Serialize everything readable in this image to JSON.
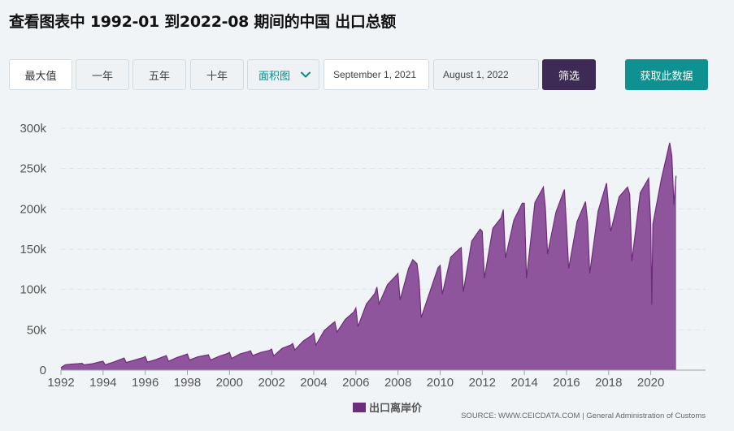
{
  "title": "查看图表中 1992-01 到2022-08 期间的中国 出口总额",
  "toolbar": {
    "ranges": [
      "最大值",
      "一年",
      "五年",
      "十年"
    ],
    "chart_type": "面积图",
    "start_date": "September 1, 2021",
    "end_date": "August 1, 2022",
    "filter_label": "筛选",
    "get_data_label": "获取此数据"
  },
  "colors": {
    "area_fill": "#8e559c",
    "area_stroke": "#6e2d7c",
    "filter_button": "#3d2b56",
    "get_data_button": "#0e9190"
  },
  "chart_data": {
    "type": "area",
    "xlabel": "",
    "ylabel": "",
    "xlim": [
      1992,
      2022.6
    ],
    "ylim": [
      0,
      300000
    ],
    "grid": true,
    "legend_position": "bottom-center",
    "x_ticks": [
      1992,
      1994,
      1996,
      1998,
      2000,
      2002,
      2004,
      2006,
      2008,
      2010,
      2012,
      2014,
      2016,
      2018,
      2020
    ],
    "x_tick_labels": [
      "1992",
      "1994",
      "1996",
      "1998",
      "2000",
      "2002",
      "2004",
      "2006",
      "2008",
      "2010",
      "2012",
      "2014",
      "2016",
      "2018",
      "2020"
    ],
    "y_ticks": [
      0,
      50000,
      100000,
      150000,
      200000,
      250000,
      300000
    ],
    "y_tick_labels": [
      "0",
      "50k",
      "100k",
      "150k",
      "200k",
      "250k",
      "300k"
    ],
    "source": "SOURCE: WWW.CEICDATA.COM | General Administration of Customs",
    "series": [
      {
        "name": "出口离岸价",
        "points": [
          [
            1992.0,
            3000
          ],
          [
            1992.2,
            6500
          ],
          [
            1992.5,
            7500
          ],
          [
            1992.8,
            8000
          ],
          [
            1993.0,
            8500
          ],
          [
            1993.1,
            6500
          ],
          [
            1993.5,
            8000
          ],
          [
            1993.8,
            10000
          ],
          [
            1994.0,
            11000
          ],
          [
            1994.1,
            6500
          ],
          [
            1994.5,
            10000
          ],
          [
            1994.9,
            14000
          ],
          [
            1995.0,
            15000
          ],
          [
            1995.1,
            9500
          ],
          [
            1995.5,
            12500
          ],
          [
            1995.9,
            15500
          ],
          [
            1996.0,
            17000
          ],
          [
            1996.1,
            10000
          ],
          [
            1996.5,
            13000
          ],
          [
            1996.9,
            17000
          ],
          [
            1997.0,
            18000
          ],
          [
            1997.1,
            11000
          ],
          [
            1997.5,
            15500
          ],
          [
            1997.9,
            19000
          ],
          [
            1998.0,
            20000
          ],
          [
            1998.1,
            12500
          ],
          [
            1998.5,
            16500
          ],
          [
            1998.9,
            18500
          ],
          [
            1999.0,
            19000
          ],
          [
            1999.1,
            12500
          ],
          [
            1999.5,
            17000
          ],
          [
            1999.9,
            20500
          ],
          [
            2000.0,
            22000
          ],
          [
            2000.1,
            14500
          ],
          [
            2000.5,
            20000
          ],
          [
            2000.9,
            23000
          ],
          [
            2001.0,
            24000
          ],
          [
            2001.1,
            18000
          ],
          [
            2001.5,
            22000
          ],
          [
            2001.9,
            24500
          ],
          [
            2002.0,
            26000
          ],
          [
            2002.1,
            17500
          ],
          [
            2002.5,
            27000
          ],
          [
            2002.9,
            31000
          ],
          [
            2003.0,
            33000
          ],
          [
            2003.1,
            25000
          ],
          [
            2003.5,
            36000
          ],
          [
            2003.9,
            43000
          ],
          [
            2004.0,
            46000
          ],
          [
            2004.1,
            31000
          ],
          [
            2004.5,
            49000
          ],
          [
            2004.9,
            58000
          ],
          [
            2005.0,
            60000
          ],
          [
            2005.1,
            47000
          ],
          [
            2005.5,
            63000
          ],
          [
            2005.9,
            72000
          ],
          [
            2006.0,
            77000
          ],
          [
            2006.1,
            54000
          ],
          [
            2006.5,
            82000
          ],
          [
            2006.9,
            95000
          ],
          [
            2007.0,
            103000
          ],
          [
            2007.1,
            82000
          ],
          [
            2007.5,
            106000
          ],
          [
            2007.9,
            117000
          ],
          [
            2008.0,
            120000
          ],
          [
            2008.1,
            87000
          ],
          [
            2008.5,
            126000
          ],
          [
            2008.7,
            137000
          ],
          [
            2008.9,
            132000
          ],
          [
            2009.0,
            111000
          ],
          [
            2009.1,
            65000
          ],
          [
            2009.5,
            96000
          ],
          [
            2009.9,
            127000
          ],
          [
            2010.0,
            130000
          ],
          [
            2010.1,
            94000
          ],
          [
            2010.5,
            140000
          ],
          [
            2010.9,
            150000
          ],
          [
            2011.0,
            152000
          ],
          [
            2011.1,
            97000
          ],
          [
            2011.5,
            160000
          ],
          [
            2011.9,
            175000
          ],
          [
            2012.0,
            172000
          ],
          [
            2012.1,
            114000
          ],
          [
            2012.5,
            176000
          ],
          [
            2012.9,
            189000
          ],
          [
            2013.0,
            199000
          ],
          [
            2013.1,
            139000
          ],
          [
            2013.5,
            186000
          ],
          [
            2013.9,
            207000
          ],
          [
            2014.0,
            207000
          ],
          [
            2014.1,
            114000
          ],
          [
            2014.5,
            208000
          ],
          [
            2014.9,
            227000
          ],
          [
            2015.0,
            200000
          ],
          [
            2015.1,
            144000
          ],
          [
            2015.5,
            196000
          ],
          [
            2015.9,
            224000
          ],
          [
            2016.0,
            177000
          ],
          [
            2016.1,
            126000
          ],
          [
            2016.5,
            184000
          ],
          [
            2016.9,
            209000
          ],
          [
            2017.0,
            183000
          ],
          [
            2017.1,
            120000
          ],
          [
            2017.5,
            197000
          ],
          [
            2017.9,
            232000
          ],
          [
            2018.0,
            200000
          ],
          [
            2018.1,
            172000
          ],
          [
            2018.5,
            215000
          ],
          [
            2018.9,
            227000
          ],
          [
            2019.0,
            218000
          ],
          [
            2019.1,
            135000
          ],
          [
            2019.5,
            220000
          ],
          [
            2019.9,
            238000
          ],
          [
            2020.0,
            181000
          ],
          [
            2020.05,
            81000
          ],
          [
            2020.1,
            181000
          ],
          [
            2020.5,
            237000
          ],
          [
            2020.9,
            282000
          ],
          [
            2021.0,
            266000
          ],
          [
            2021.1,
            205000
          ],
          [
            2021.2,
            241000
          ]
        ]
      }
    ]
  }
}
